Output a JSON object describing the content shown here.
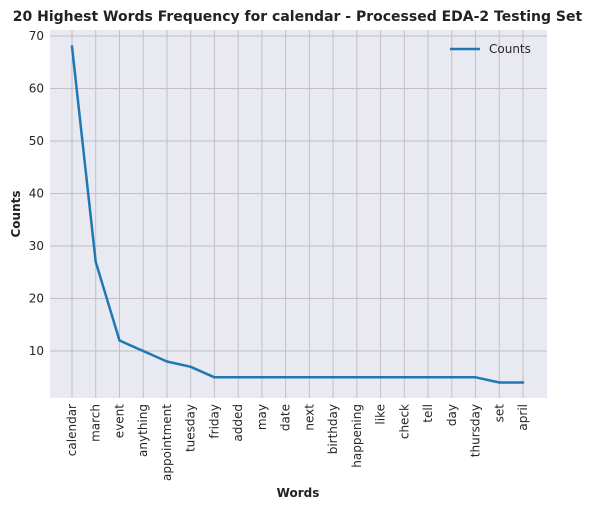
{
  "chart_data": {
    "type": "line",
    "title": "20 Highest Words Frequency for calendar - Processed EDA-2 Testing Set",
    "xlabel": "Words",
    "ylabel": "Counts",
    "categories": [
      "calendar",
      "march",
      "event",
      "anything",
      "appointment",
      "tuesday",
      "friday",
      "added",
      "may",
      "date",
      "next",
      "birthday",
      "happening",
      "like",
      "check",
      "tell",
      "day",
      "thursday",
      "set",
      "april"
    ],
    "series": [
      {
        "name": "Counts",
        "values": [
          68,
          27,
          12,
          10,
          8,
          7,
          5,
          5,
          5,
          5,
          5,
          5,
          5,
          5,
          5,
          5,
          5,
          5,
          4,
          4
        ],
        "color": "#1f77b4"
      }
    ],
    "ylim": [
      1,
      70
    ],
    "yticks": [
      10,
      20,
      30,
      40,
      50,
      60,
      70
    ],
    "grid": true,
    "legend_position": "top-right",
    "colors": {
      "plot_background": "#e9e9f1",
      "grid": "#c0c0c6",
      "line": "#1f77b4"
    }
  }
}
